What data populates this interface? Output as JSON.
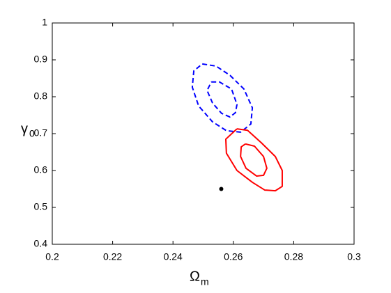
{
  "chart_data": {
    "type": "line",
    "xlabel": "Ω",
    "xlabel_sub": "m",
    "ylabel": "γ",
    "ylabel_sub": "0",
    "xlim": [
      0.2,
      0.3
    ],
    "xticks": [
      0.2,
      0.22,
      0.24,
      0.26,
      0.28,
      0.3
    ],
    "ylim": [
      0.4,
      1
    ],
    "yticks": [
      0.4,
      0.5,
      0.6,
      0.7,
      0.8,
      0.9,
      1
    ],
    "series": [
      {
        "color": "#0000ff",
        "dash": true,
        "x": [
          0.2497,
          0.2543,
          0.2589,
          0.2635,
          0.2663,
          0.2658,
          0.2624,
          0.2577,
          0.2531,
          0.2485,
          0.2464,
          0.2469,
          0.2497
        ],
        "values": [
          0.889,
          0.883,
          0.858,
          0.821,
          0.77,
          0.726,
          0.704,
          0.708,
          0.732,
          0.775,
          0.826,
          0.87,
          0.889
        ]
      },
      {
        "color": "#0000ff",
        "dash": true,
        "x": [
          0.2527,
          0.2554,
          0.2594,
          0.2612,
          0.2607,
          0.2589,
          0.2561,
          0.2531,
          0.2513,
          0.2527
        ],
        "values": [
          0.84,
          0.84,
          0.821,
          0.779,
          0.757,
          0.745,
          0.755,
          0.783,
          0.817,
          0.84
        ]
      },
      {
        "color": "#ff0000",
        "dash": false,
        "x": [
          0.2612,
          0.2647,
          0.2693,
          0.2739,
          0.2762,
          0.2762,
          0.2739,
          0.2704,
          0.2663,
          0.2612,
          0.2577,
          0.2575,
          0.2612
        ],
        "values": [
          0.713,
          0.709,
          0.675,
          0.638,
          0.6,
          0.557,
          0.545,
          0.547,
          0.568,
          0.6,
          0.647,
          0.685,
          0.713
        ]
      },
      {
        "color": "#ff0000",
        "dash": false,
        "x": [
          0.264,
          0.267,
          0.27,
          0.2711,
          0.27,
          0.2677,
          0.2642,
          0.2624,
          0.2626,
          0.264
        ],
        "values": [
          0.672,
          0.666,
          0.638,
          0.606,
          0.587,
          0.585,
          0.606,
          0.638,
          0.664,
          0.672
        ]
      },
      {
        "color": "#000000",
        "marker": "dot",
        "x": [
          0.256
        ],
        "values": [
          0.55
        ]
      }
    ]
  }
}
